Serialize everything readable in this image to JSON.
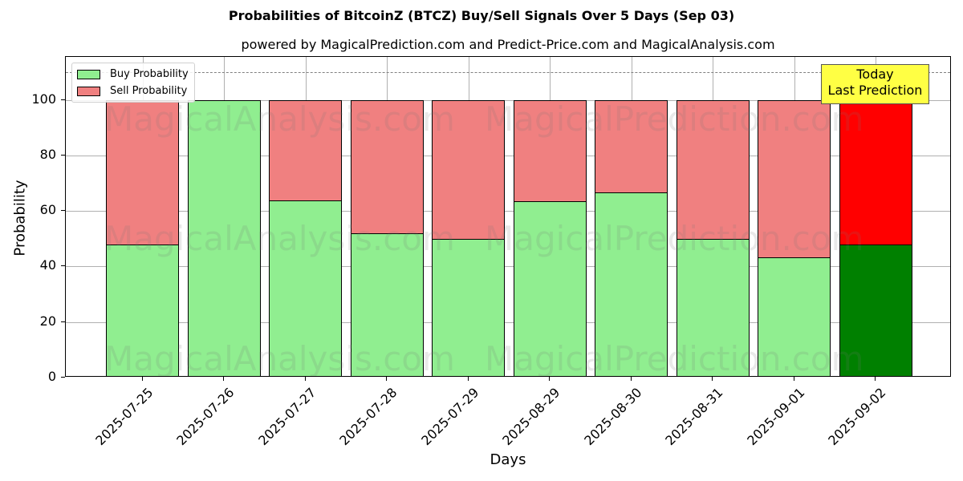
{
  "chart_data": {
    "type": "bar",
    "stacked": true,
    "title": "Probabilities of BitcoinZ (BTCZ) Buy/Sell Signals Over 5 Days (Sep 03)",
    "subtitle": "powered by MagicalPrediction.com and Predict-Price.com and MagicalAnalysis.com",
    "xlabel": "Days",
    "ylabel": "Probability",
    "ylim": [
      0,
      115.5
    ],
    "yticks": [
      0,
      20,
      40,
      60,
      80,
      100
    ],
    "grid": true,
    "legend_position": "upper left",
    "categories": [
      "2025-07-25",
      "2025-07-26",
      "2025-07-27",
      "2025-07-28",
      "2025-07-29",
      "2025-08-29",
      "2025-08-30",
      "2025-08-31",
      "2025-09-01",
      "2025-09-02"
    ],
    "series": [
      {
        "name": "Buy Probability",
        "color": "#90ee90",
        "values": [
          48.0,
          100.0,
          63.8,
          52.1,
          50.0,
          63.4,
          66.6,
          50.0,
          43.2,
          48.0
        ]
      },
      {
        "name": "Sell Probability",
        "color": "#f08080",
        "values": [
          52.0,
          0.0,
          36.2,
          47.9,
          50.0,
          36.6,
          33.4,
          50.0,
          56.8,
          52.0
        ]
      }
    ],
    "highlight": {
      "index": 9,
      "buy_color": "#008000",
      "sell_color": "#ff0000"
    },
    "reference_line": {
      "y": 110,
      "style": "dashed",
      "color": "#808080"
    },
    "annotations": [
      {
        "text": "Today\nLast Prediction",
        "x_index": 9,
        "y": 110,
        "background": "#ffff44"
      }
    ],
    "watermarks": [
      "MagicalAnalysis.com",
      "MagicalPrediction.com"
    ]
  },
  "legend": {
    "buy_label": "Buy Probability",
    "sell_label": "Sell Probability"
  },
  "annotation": {
    "line1": "Today",
    "line2": "Last Prediction"
  }
}
